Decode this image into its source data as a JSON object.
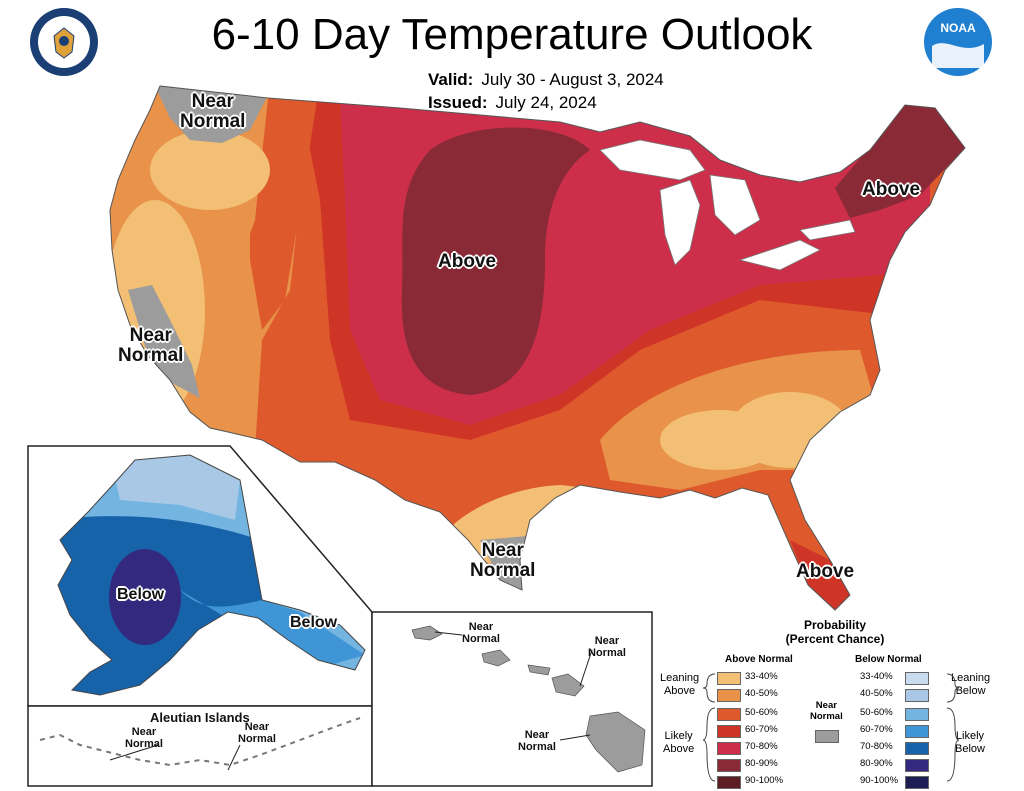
{
  "header": {
    "title": "6-10 Day Temperature Outlook",
    "valid_label": "Valid:",
    "valid_value": "July 30 - August 3, 2024",
    "issued_label": "Issued:",
    "issued_value": "July 24, 2024",
    "left_logo": "department-of-commerce-seal",
    "right_logo": "noaa-logo",
    "right_logo_text": "NOAA"
  },
  "map_labels": {
    "nw": [
      "Near",
      "Normal"
    ],
    "ca": [
      "Near",
      "Normal"
    ],
    "tx": [
      "Near",
      "Normal"
    ],
    "central": "Above",
    "ne": "Above",
    "fl": "Above",
    "ak_west": "Below",
    "ak_se": "Below",
    "aleutian_title": "Aleutian Islands",
    "aleutian_a": [
      "Near",
      "Normal"
    ],
    "aleutian_b": [
      "Near",
      "Normal"
    ],
    "hi_a": [
      "Near",
      "Normal"
    ],
    "hi_b": [
      "Near",
      "Normal"
    ],
    "hi_c": [
      "Near",
      "Normal"
    ]
  },
  "legend": {
    "title_line1": "Probability",
    "title_line2": "(Percent Chance)",
    "above_header": "Above Normal",
    "below_header": "Below Normal",
    "near_label": [
      "Near",
      "Normal"
    ],
    "leaning_above": [
      "Leaning",
      "Above"
    ],
    "likely_above": [
      "Likely",
      "Above"
    ],
    "leaning_below": [
      "Leaning",
      "Below"
    ],
    "likely_below": [
      "Likely",
      "Below"
    ],
    "above": [
      {
        "label": "33-40%",
        "color": "#f2bf74"
      },
      {
        "label": "40-50%",
        "color": "#e8924a"
      },
      {
        "label": "50-60%",
        "color": "#de5a2c"
      },
      {
        "label": "60-70%",
        "color": "#cf3527"
      },
      {
        "label": "70-80%",
        "color": "#cd2f4a"
      },
      {
        "label": "80-90%",
        "color": "#8a2a37"
      },
      {
        "label": "90-100%",
        "color": "#5c1e22"
      }
    ],
    "below": [
      {
        "label": "33-40%",
        "color": "#c9dcef"
      },
      {
        "label": "40-50%",
        "color": "#a8c8e6"
      },
      {
        "label": "50-60%",
        "color": "#74b4e0"
      },
      {
        "label": "60-70%",
        "color": "#3f95d6"
      },
      {
        "label": "70-80%",
        "color": "#1763aa"
      },
      {
        "label": "80-90%",
        "color": "#332a80"
      },
      {
        "label": "90-100%",
        "color": "#1d1d55"
      }
    ],
    "near_color": "#9c9c9c"
  }
}
